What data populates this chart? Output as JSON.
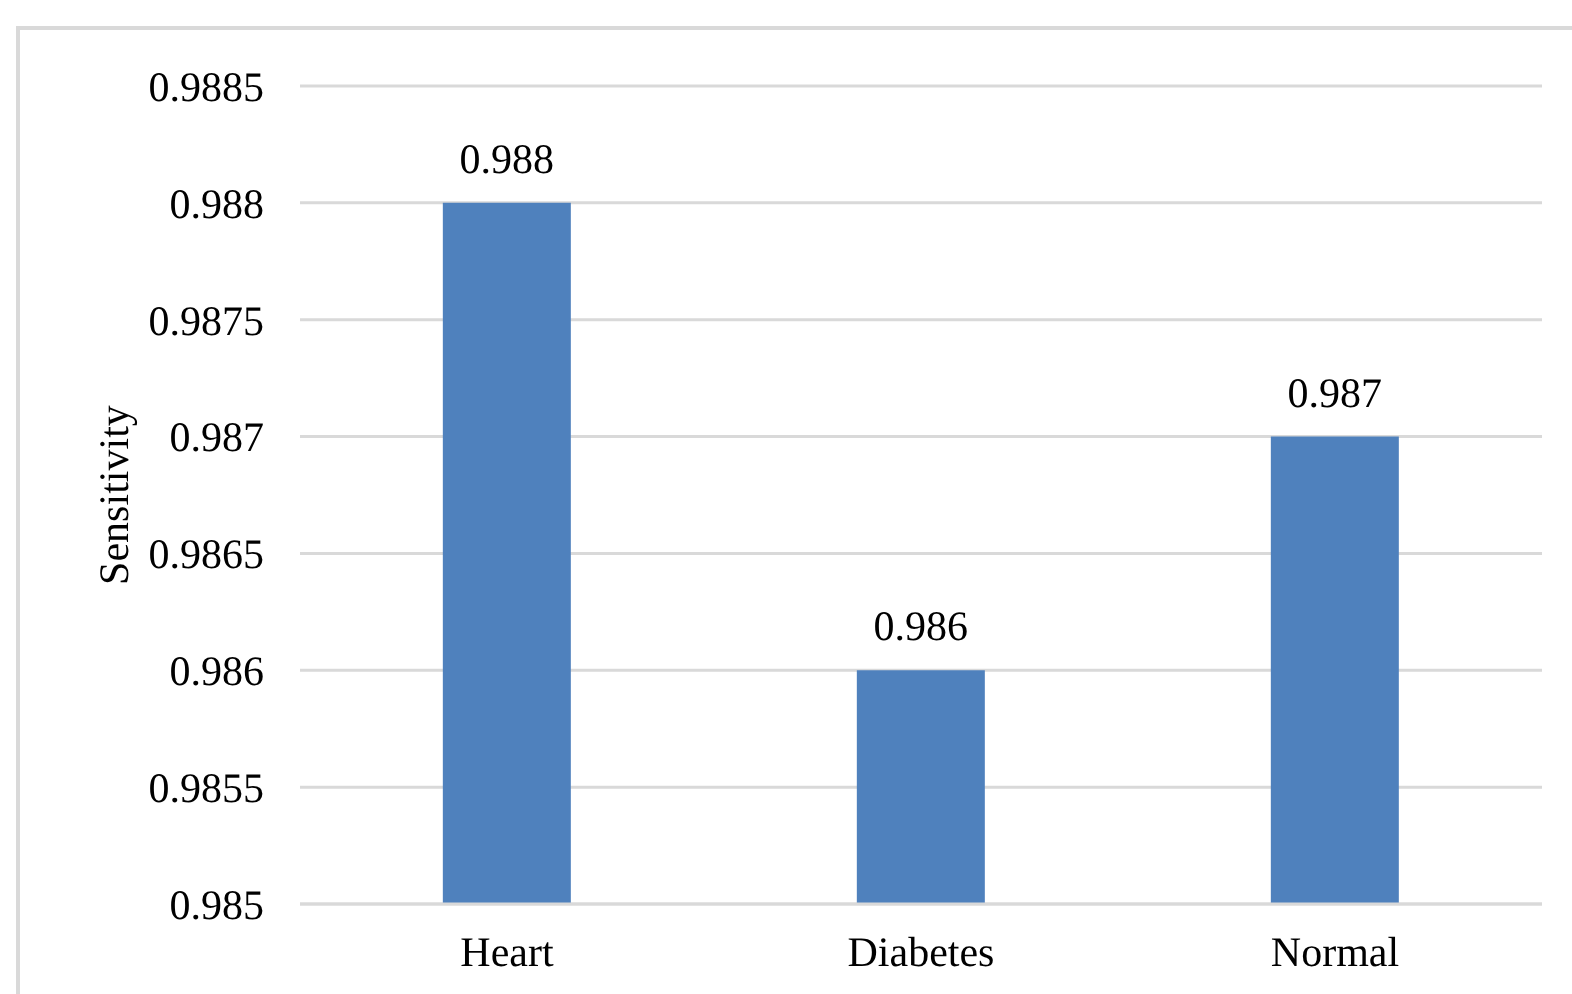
{
  "chart_data": {
    "type": "bar",
    "categories": [
      "Heart",
      "Diabetes",
      "Normal"
    ],
    "values": [
      0.988,
      0.986,
      0.987
    ],
    "color": "#4f81bd",
    "ylabel": "Sensitivity",
    "ylim": [
      0.985,
      0.9885
    ],
    "yticks": [
      0.985,
      0.9855,
      0.986,
      0.9865,
      0.987,
      0.9875,
      0.988,
      0.9885
    ],
    "grid": "y",
    "data_labels": true
  }
}
